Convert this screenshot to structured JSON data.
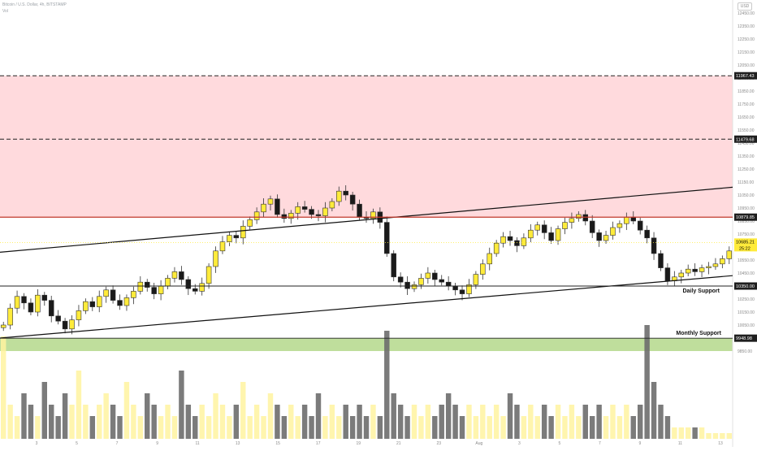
{
  "header": {
    "symbol_title": "Bitcoin / U.S. Dollar, 4h, BITSTAMP",
    "sub_line": "Vol",
    "settings_label": "USD"
  },
  "colors": {
    "up_candle": "#ffeb3b",
    "down_candle": "#1a1a1a",
    "resistance_zone": "#ffcdd2",
    "support_zone": "#8bc34a",
    "volume_up": "#fff3a0",
    "volume_down": "#6d6d6d",
    "price_badge": "#ffeb3b",
    "level_badge": "#1f1f1f"
  },
  "annotations": {
    "daily_support_label": "Daily Support",
    "monthly_support_label": "Monthly Support"
  },
  "price_levels": [
    {
      "label": "11967.43",
      "price": 11967.43,
      "style": "dashed",
      "badge": "dark"
    },
    {
      "label": "11479.68",
      "price": 11479.68,
      "style": "dashed",
      "badge": "dark"
    },
    {
      "label": "10879.85",
      "price": 10879.85,
      "style": "solid-red",
      "badge": "dark"
    },
    {
      "label": "10350.00",
      "price": 10350.0,
      "style": "solid",
      "badge": "dark"
    },
    {
      "label": "9948.98",
      "price": 9948.98,
      "style": "solid",
      "badge": "dark"
    }
  ],
  "last_price": {
    "label": "10685.21",
    "price": 10685.21,
    "countdown": "25:22"
  },
  "chart_data": {
    "type": "candlestick",
    "title": "Bitcoin / U.S. Dollar, 4h, BITSTAMP",
    "ylim": [
      9800,
      12550
    ],
    "y_ticks": [
      "12450.00",
      "12350.00",
      "12250.00",
      "12150.00",
      "12050.00",
      "11950.00",
      "11850.00",
      "11750.00",
      "11650.00",
      "11550.00",
      "11450.00",
      "11350.00",
      "11250.00",
      "11150.00",
      "11050.00",
      "10950.00",
      "10850.00",
      "10750.00",
      "10650.00",
      "10550.00",
      "10450.00",
      "10350.00",
      "10250.00",
      "10150.00",
      "10050.00",
      "9950.00",
      "9850.00"
    ],
    "x_ticks": [
      "3",
      "5",
      "7",
      "9",
      "11",
      "13",
      "15",
      "17",
      "19",
      "21",
      "23",
      "Aug",
      "3",
      "5",
      "7",
      "9",
      "11",
      "13"
    ],
    "resistance_zone": [
      10879.85,
      11967.43
    ],
    "support_zone": [
      9850,
      9948.98
    ],
    "trendlines": [
      {
        "name": "upper-channel",
        "from": [
          0,
          10610
        ],
        "to": [
          1,
          11110
        ]
      },
      {
        "name": "lower-channel",
        "from": [
          0,
          9950
        ],
        "to": [
          1,
          10430
        ]
      }
    ],
    "close_series": [
      10050,
      10180,
      10270,
      10220,
      10150,
      10280,
      10240,
      10120,
      10080,
      10020,
      10090,
      10160,
      10230,
      10190,
      10270,
      10320,
      10240,
      10200,
      10260,
      10310,
      10380,
      10340,
      10290,
      10350,
      10410,
      10460,
      10400,
      10330,
      10310,
      10370,
      10500,
      10620,
      10690,
      10740,
      10720,
      10810,
      10860,
      10920,
      10980,
      11020,
      10900,
      10870,
      10910,
      10960,
      10940,
      10900,
      10890,
      10950,
      11000,
      11080,
      11050,
      10980,
      10880,
      10870,
      10920,
      10840,
      10600,
      10420,
      10380,
      10330,
      10360,
      10410,
      10450,
      10400,
      10380,
      10350,
      10320,
      10290,
      10360,
      10440,
      10520,
      10600,
      10680,
      10730,
      10700,
      10660,
      10720,
      10780,
      10820,
      10760,
      10700,
      10790,
      10840,
      10870,
      10900,
      10850,
      10760,
      10700,
      10740,
      10800,
      10830,
      10880,
      10850,
      10780,
      10720,
      10600,
      10490,
      10390,
      10420,
      10450,
      10480,
      10460,
      10490,
      10500,
      10520,
      10560,
      10620
    ],
    "volume_series": [
      0.9,
      0.3,
      0.2,
      0.4,
      0.3,
      0.2,
      0.5,
      0.3,
      0.2,
      0.4,
      0.3,
      0.6,
      0.3,
      0.2,
      0.3,
      0.4,
      0.3,
      0.2,
      0.5,
      0.3,
      0.2,
      0.4,
      0.3,
      0.2,
      0.3,
      0.2,
      0.6,
      0.3,
      0.2,
      0.3,
      0.2,
      0.4,
      0.3,
      0.2,
      0.3,
      0.5,
      0.2,
      0.3,
      0.2,
      0.4,
      0.3,
      0.2,
      0.3,
      0.2,
      0.3,
      0.2,
      0.4,
      0.2,
      0.3,
      0.2,
      0.3,
      0.2,
      0.3,
      0.2,
      0.3,
      0.2,
      0.95,
      0.4,
      0.3,
      0.2,
      0.3,
      0.2,
      0.3,
      0.2,
      0.3,
      0.4,
      0.3,
      0.2,
      0.3,
      0.2,
      0.3,
      0.2,
      0.3,
      0.2,
      0.4,
      0.3,
      0.2,
      0.3,
      0.2,
      0.3,
      0.2,
      0.3,
      0.2,
      0.3,
      0.2,
      0.3,
      0.2,
      0.3,
      0.2,
      0.3,
      0.2,
      0.3,
      0.2,
      0.3,
      1.0,
      0.5,
      0.3,
      0.2,
      0.1,
      0.1,
      0.1,
      0.1,
      0.1,
      0.05,
      0.05,
      0.05,
      0.05
    ]
  }
}
